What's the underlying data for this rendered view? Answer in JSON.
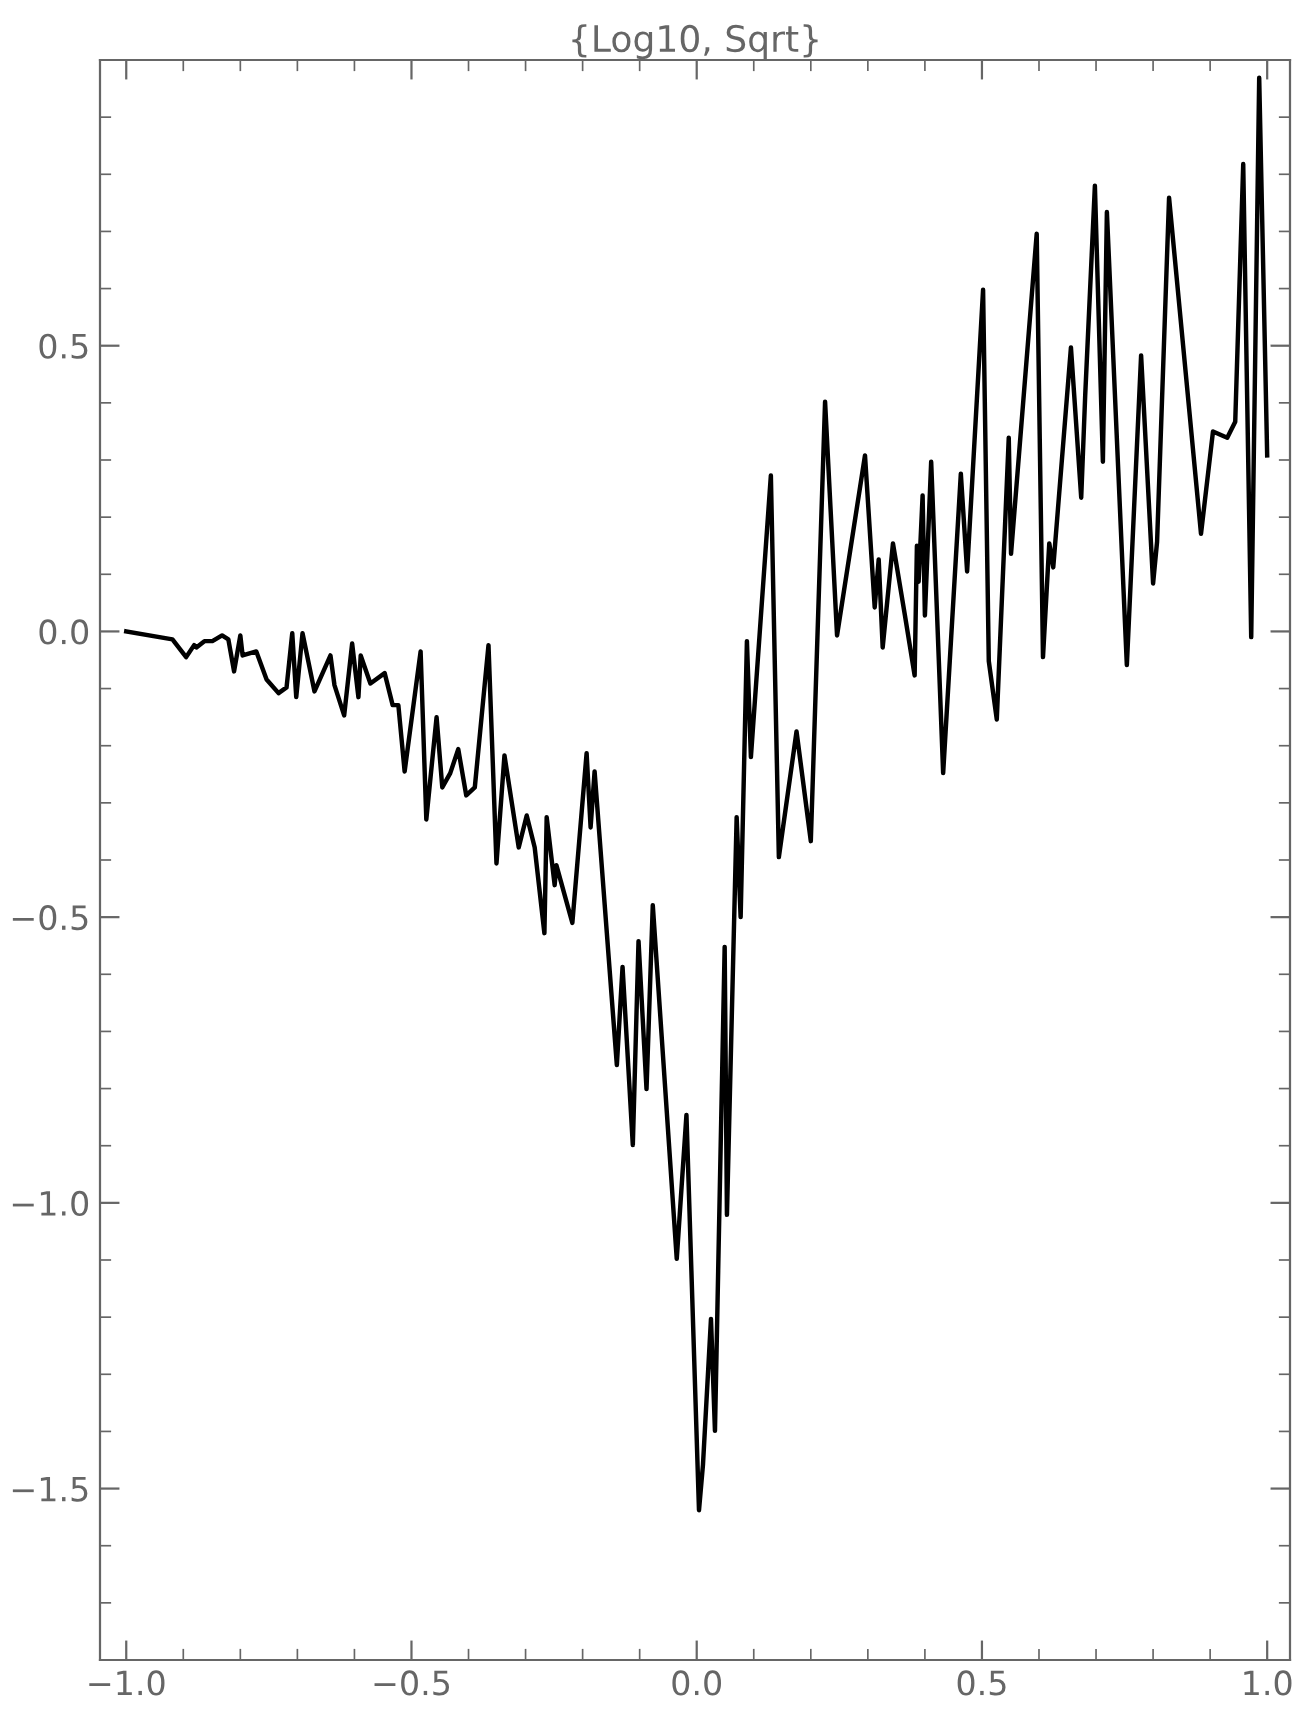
{
  "chart_data": {
    "type": "line",
    "title": "{Log10, Sqrt}",
    "xlim": [
      -1.046,
      1.04
    ],
    "ylim": [
      -1.8,
      1.0
    ],
    "xticks": [
      {
        "value": -1.0,
        "label": "−1.0"
      },
      {
        "value": -0.5,
        "label": "−0.5"
      },
      {
        "value": 0.0,
        "label": "0.0"
      },
      {
        "value": 0.5,
        "label": "0.5"
      },
      {
        "value": 1.0,
        "label": "1.0"
      }
    ],
    "yticks": [
      {
        "value": -1.5,
        "label": "−1.5"
      },
      {
        "value": -1.0,
        "label": "−1.0"
      },
      {
        "value": -0.5,
        "label": "−0.5"
      },
      {
        "value": 0.0,
        "label": "0.0"
      },
      {
        "value": 0.5,
        "label": "0.5"
      }
    ],
    "grid": false,
    "legend": false,
    "marker": "none",
    "line_style": "solid",
    "series": [
      {
        "color": "#000000",
        "x": [
          -1.0,
          -0.919,
          -0.895,
          -0.881,
          -0.877,
          -0.863,
          -0.849,
          -0.832,
          -0.821,
          -0.811,
          -0.8,
          -0.796,
          -0.772,
          -0.754,
          -0.733,
          -0.719,
          -0.709,
          -0.702,
          -0.691,
          -0.67,
          -0.642,
          -0.635,
          -0.618,
          -0.604,
          -0.593,
          -0.589,
          -0.572,
          -0.547,
          -0.533,
          -0.523,
          -0.512,
          -0.484,
          -0.474,
          -0.456,
          -0.446,
          -0.432,
          -0.418,
          -0.404,
          -0.389,
          -0.365,
          -0.351,
          -0.337,
          -0.312,
          -0.298,
          -0.284,
          -0.267,
          -0.263,
          -0.249,
          -0.246,
          -0.218,
          -0.193,
          -0.186,
          -0.179,
          -0.14,
          -0.13,
          -0.112,
          -0.102,
          -0.088,
          -0.077,
          -0.035,
          -0.018,
          0.004,
          0.011,
          0.025,
          0.032,
          0.049,
          0.053,
          0.07,
          0.077,
          0.088,
          0.095,
          0.13,
          0.144,
          0.175,
          0.2,
          0.225,
          0.246,
          0.295,
          0.312,
          0.319,
          0.326,
          0.344,
          0.365,
          0.382,
          0.386,
          0.389,
          0.396,
          0.4,
          0.411,
          0.432,
          0.463,
          0.474,
          0.502,
          0.512,
          0.526,
          0.547,
          0.551,
          0.596,
          0.607,
          0.618,
          0.625,
          0.656,
          0.674,
          0.681,
          0.698,
          0.712,
          0.719,
          0.754,
          0.779,
          0.8,
          0.807,
          0.828,
          0.884,
          0.905,
          0.93,
          0.944,
          0.958,
          0.972,
          0.986,
          1.0
        ],
        "values": [
          0.0,
          -0.014,
          -0.045,
          -0.024,
          -0.028,
          -0.017,
          -0.017,
          -0.007,
          -0.014,
          -0.07,
          -0.007,
          -0.042,
          -0.035,
          -0.084,
          -0.108,
          -0.098,
          -0.003,
          -0.115,
          -0.003,
          -0.105,
          -0.042,
          -0.094,
          -0.147,
          -0.021,
          -0.115,
          -0.042,
          -0.091,
          -0.073,
          -0.129,
          -0.129,
          -0.245,
          -0.035,
          -0.329,
          -0.15,
          -0.273,
          -0.248,
          -0.206,
          -0.287,
          -0.273,
          -0.024,
          -0.406,
          -0.217,
          -0.378,
          -0.322,
          -0.378,
          -0.528,
          -0.325,
          -0.444,
          -0.409,
          -0.51,
          -0.213,
          -0.343,
          -0.245,
          -0.759,
          -0.587,
          -0.899,
          -0.542,
          -0.801,
          -0.479,
          -1.098,
          -0.846,
          -1.538,
          -1.458,
          -1.203,
          -1.399,
          -0.552,
          -1.021,
          -0.325,
          -0.5,
          -0.017,
          -0.22,
          0.273,
          -0.395,
          -0.175,
          -0.367,
          0.402,
          -0.007,
          0.308,
          0.042,
          0.126,
          -0.028,
          0.154,
          0.028,
          -0.077,
          0.15,
          0.087,
          0.238,
          0.028,
          0.297,
          -0.248,
          0.276,
          0.105,
          0.598,
          -0.052,
          -0.154,
          0.339,
          0.136,
          0.696,
          -0.045,
          0.154,
          0.112,
          0.497,
          0.234,
          0.413,
          0.78,
          0.297,
          0.734,
          -0.059,
          0.483,
          0.084,
          0.157,
          0.759,
          0.171,
          0.35,
          0.339,
          0.367,
          0.818,
          -0.01,
          0.969,
          0.308
        ]
      }
    ]
  }
}
